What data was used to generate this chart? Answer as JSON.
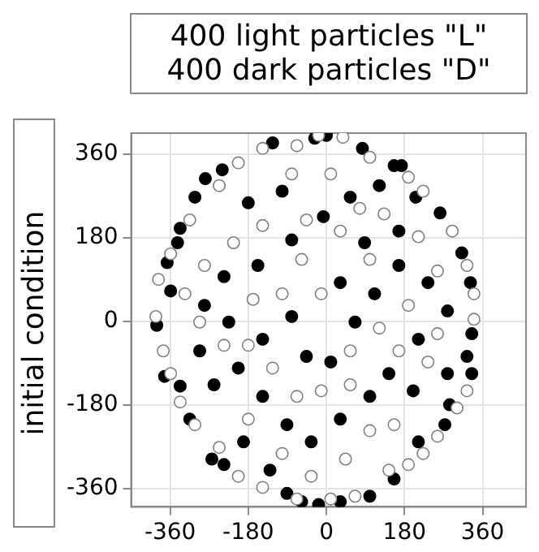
{
  "chart_data": {
    "type": "scatter",
    "title": "400 light particles \"L\"\n400 dark particles \"D\"",
    "ylabel": "initial condition",
    "xlim": [
      -450,
      460
    ],
    "ylim": [
      -400,
      405
    ],
    "xticks": [
      -360,
      -180,
      0,
      180,
      360
    ],
    "yticks": [
      -360,
      -180,
      0,
      180,
      360
    ],
    "grid": true,
    "legend": false,
    "marker": "circle",
    "series": [
      {
        "color": "#808080",
        "x": [
          -18,
          38,
          -147,
          -203,
          -247,
          -315,
          -359,
          -387,
          -393,
          -376,
          -359,
          -337,
          -303,
          -247,
          -203,
          -147,
          -68,
          10,
          66,
          144,
          189,
          223,
          256,
          301,
          324,
          340,
          340,
          324,
          290,
          223,
          189,
          100,
          -68,
          -80,
          10,
          77,
          133,
          212,
          256,
          189,
          122,
          55,
          -12,
          -68,
          -124,
          -180,
          -236,
          -292,
          -326,
          -281,
          -214,
          -147,
          -57,
          -12,
          -102,
          -169,
          100,
          167,
          234,
          256,
          100,
          44,
          -35,
          -102,
          -180,
          -46,
          32,
          156,
          55
        ],
        "values": [
          400,
          396,
          372,
          341,
          292,
          218,
          145,
          90,
          10,
          -64,
          -113,
          -174,
          -223,
          -272,
          -334,
          -358,
          -383,
          -383,
          -377,
          -321,
          -309,
          -285,
          -248,
          -187,
          -150,
          4,
          59,
          120,
          194,
          280,
          310,
          353,
          378,
          317,
          317,
          243,
          231,
          182,
          108,
          34,
          -15,
          -64,
          -150,
          -162,
          -101,
          -52,
          -52,
          -2,
          59,
          120,
          169,
          206,
          133,
          59,
          59,
          47,
          133,
          -64,
          -88,
          -27,
          -236,
          -297,
          -334,
          -285,
          -211,
          218,
          194,
          -223,
          -137
        ]
      },
      {
        "color": "#000000",
        "x": [
          -124,
          -27,
          0,
          83,
          156,
          173,
          -240,
          -279,
          -303,
          -337,
          -343,
          -367,
          -359,
          -391,
          -373,
          -337,
          -315,
          -264,
          -236,
          -191,
          -130,
          -91,
          -57,
          -18,
          32,
          100,
          156,
          212,
          273,
          284,
          335,
          324,
          335,
          332,
          312,
          262,
          206,
          122,
          55,
          -7,
          -80,
          -158,
          -236,
          -281,
          -225,
          -147,
          -80,
          -46,
          10,
          66,
          111,
          167,
          234,
          212,
          144,
          100,
          32,
          -35,
          -91,
          -147,
          -203,
          -259,
          -292,
          -102,
          -180,
          88,
          32,
          167,
          279,
          279,
          200
        ],
        "values": [
          384,
          394,
          400,
          372,
          335,
          335,
          326,
          307,
          267,
          200,
          169,
          126,
          65,
          -9,
          -119,
          -140,
          -211,
          -297,
          -309,
          -260,
          -321,
          -371,
          -389,
          -395,
          -389,
          -377,
          -340,
          -260,
          -223,
          -180,
          -113,
          -76,
          -27,
          83,
          147,
          233,
          267,
          292,
          267,
          225,
          175,
          120,
          96,
          34,
          -2,
          -39,
          10,
          -76,
          -88,
          -2,
          59,
          120,
          83,
          -39,
          -113,
          -162,
          -211,
          -260,
          -223,
          -162,
          -101,
          -137,
          -64,
          280,
          255,
          169,
          83,
          194,
          22,
          -113,
          -150
        ]
      }
    ]
  }
}
